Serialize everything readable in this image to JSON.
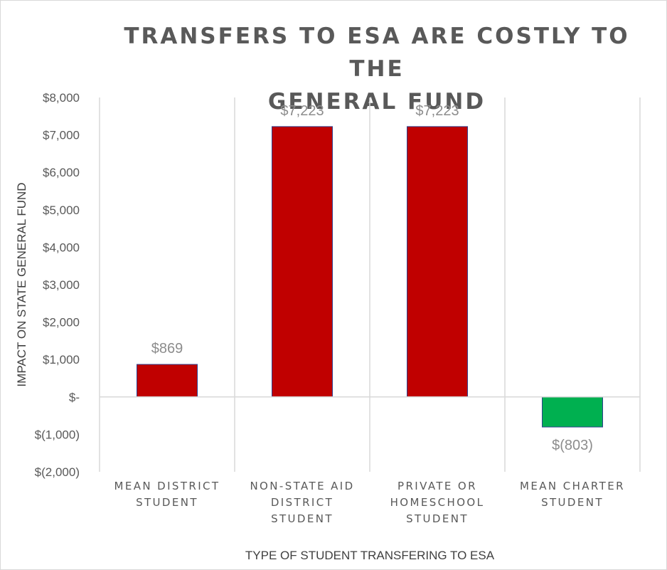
{
  "chart_data": {
    "type": "bar",
    "title_lines": [
      "TRANSFERS TO ESA ARE COSTLY TO THE",
      "GENERAL FUND"
    ],
    "xlabel": "TYPE OF STUDENT TRANSFERING TO ESA",
    "ylabel": "IMPACT ON STATE GENERAL FUND",
    "categories": [
      [
        "MEAN DISTRICT",
        "STUDENT"
      ],
      [
        "NON-STATE AID",
        "DISTRICT",
        "STUDENT"
      ],
      [
        "PRIVATE OR",
        "HOMESCHOOL",
        "STUDENT"
      ],
      [
        "MEAN CHARTER",
        "STUDENT"
      ]
    ],
    "values": [
      869,
      7223,
      7223,
      -803
    ],
    "data_labels": [
      "$869",
      "$7,223",
      "$7,223",
      "$(803)"
    ],
    "ylim": [
      -2000,
      8000
    ],
    "yticks": [
      8000,
      7000,
      6000,
      5000,
      4000,
      3000,
      2000,
      1000,
      0,
      -1000,
      -2000
    ],
    "ytick_labels": [
      "$8,000",
      "$7,000",
      "$6,000",
      "$5,000",
      "$4,000",
      "$3,000",
      "$2,000",
      "$1,000",
      "$-",
      "$(1,000)",
      "$(2,000)"
    ],
    "grid": "vertical category separators",
    "colors": {
      "positive": "#c00000",
      "negative": "#00b050",
      "bar_outline": "#2f3f8f",
      "axis": "#d9d9d9"
    }
  }
}
